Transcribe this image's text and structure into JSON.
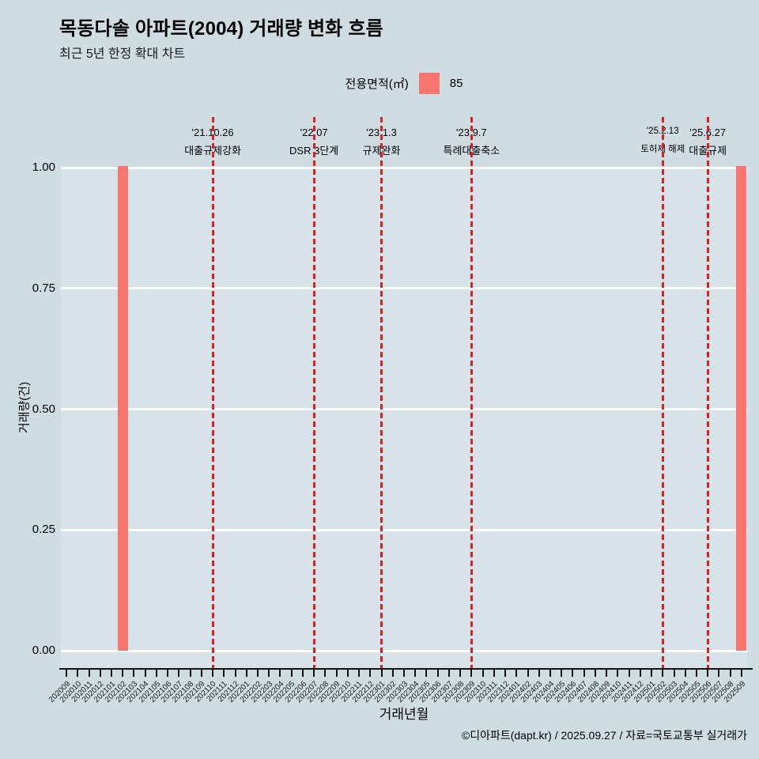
{
  "title": "목동다솔 아파트(2004) 거래량 변화 흐름",
  "subtitle": "최근 5년 한정 확대 차트",
  "legend": {
    "label": "전용면적(㎡)",
    "value": "85",
    "swatch_color": "#f8766d"
  },
  "axes": {
    "y_title": "거래량(건)",
    "x_title": "거래년월",
    "y_tick_labels": [
      "1.00",
      "0.75",
      "0.50",
      "0.25",
      "0.00"
    ]
  },
  "footer": "©디아파트(dapt.kr) / 2025.09.27 / 자료=국토교통부 실거래가",
  "colors": {
    "page_bg": "#cfdde3",
    "panel_bg": "#d8e3e9",
    "gridline": "#ffffff",
    "bar": "#f8766d",
    "event_line": "#e02020",
    "axis": "#111111"
  },
  "chart_data": {
    "type": "bar",
    "title": "목동다솔 아파트(2004) 거래량 변화 흐름",
    "subtitle": "최근 5년 한정 확대 차트",
    "xlabel": "거래년월",
    "ylabel": "거래량(건)",
    "ylim": [
      0,
      1
    ],
    "y_tick_values": [
      1.0,
      0.75,
      0.5,
      0.25,
      0.0
    ],
    "grid": "major-horizontal-white",
    "legend_position": "top-center",
    "series_name": "85",
    "categories": [
      "202009",
      "202010",
      "202011",
      "202012",
      "202101",
      "202102",
      "202103",
      "202104",
      "202105",
      "202106",
      "202107",
      "202108",
      "202109",
      "202110",
      "202111",
      "202112",
      "202201",
      "202202",
      "202203",
      "202204",
      "202205",
      "202206",
      "202207",
      "202208",
      "202209",
      "202210",
      "202211",
      "202212",
      "202301",
      "202302",
      "202303",
      "202304",
      "202305",
      "202306",
      "202307",
      "202308",
      "202309",
      "202310",
      "202311",
      "202312",
      "202401",
      "202402",
      "202403",
      "202404",
      "202405",
      "202406",
      "202407",
      "202408",
      "202409",
      "202410",
      "202411",
      "202412",
      "202501",
      "202502",
      "202503",
      "202504",
      "202505",
      "202506",
      "202507",
      "202508",
      "202509"
    ],
    "values": [
      0,
      0,
      0,
      0,
      0,
      1,
      0,
      0,
      0,
      0,
      0,
      0,
      0,
      0,
      0,
      0,
      0,
      0,
      0,
      0,
      0,
      0,
      0,
      0,
      0,
      0,
      0,
      0,
      0,
      0,
      0,
      0,
      0,
      0,
      0,
      0,
      0,
      0,
      0,
      0,
      0,
      0,
      0,
      0,
      0,
      0,
      0,
      0,
      0,
      0,
      0,
      0,
      0,
      0,
      0,
      0,
      0,
      0,
      0,
      0,
      1
    ],
    "events": [
      {
        "date": "'21.10.26",
        "label": "대출규제강화",
        "month": "202110"
      },
      {
        "date": "'22.07",
        "label": "DSR 3단계",
        "month": "202207"
      },
      {
        "date": "'23.1.3",
        "label": "규제완화",
        "month": "202301"
      },
      {
        "date": "'23.9.7",
        "label": "특례대출축소",
        "month": "202309"
      },
      {
        "date": "'25.2.13",
        "label": "토허제 해제",
        "month": "202502"
      },
      {
        "date": "'25.6.27",
        "label": "대출규제",
        "month": "202506"
      }
    ]
  }
}
